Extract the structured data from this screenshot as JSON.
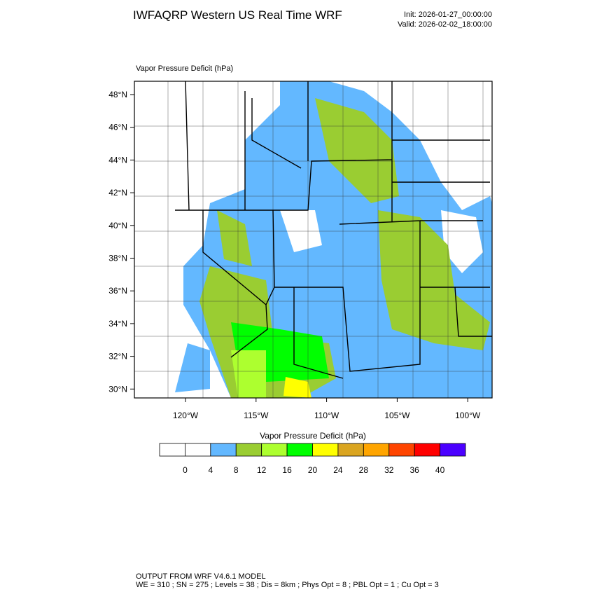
{
  "header": {
    "title": "IWFAQRP Western US Real Time WRF",
    "init": "Init: 2026-01-27_00:00:00",
    "valid": "Valid: 2026-02-02_18:00:00"
  },
  "map": {
    "subtitle": "Vapor Pressure Deficit   (hPa)",
    "lat_labels": [
      "48°N",
      "46°N",
      "44°N",
      "42°N",
      "40°N",
      "38°N",
      "36°N",
      "34°N",
      "32°N",
      "30°N"
    ],
    "lon_labels": [
      "120°W",
      "115°W",
      "110°W",
      "105°W",
      "100°W"
    ]
  },
  "colorbar": {
    "title": "Vapor Pressure Deficit  (hPa)",
    "ticks": [
      0,
      4,
      8,
      12,
      16,
      20,
      24,
      28,
      32,
      36,
      40
    ],
    "colors": [
      "#ffffff",
      "#ffffff",
      "#63b8ff",
      "#9acd32",
      "#adff2f",
      "#00ff00",
      "#ffff00",
      "#daa520",
      "#ffa500",
      "#ff4500",
      "#ff0000",
      "#4b00ff"
    ]
  },
  "footer": {
    "line1": "OUTPUT FROM WRF V4.6.1 MODEL",
    "line2": "WE = 310 ; SN = 275 ; Levels = 38 ; Dis = 8km ; Phys Opt = 8 ; PBL Opt = 1 ; Cu Opt = 3"
  }
}
